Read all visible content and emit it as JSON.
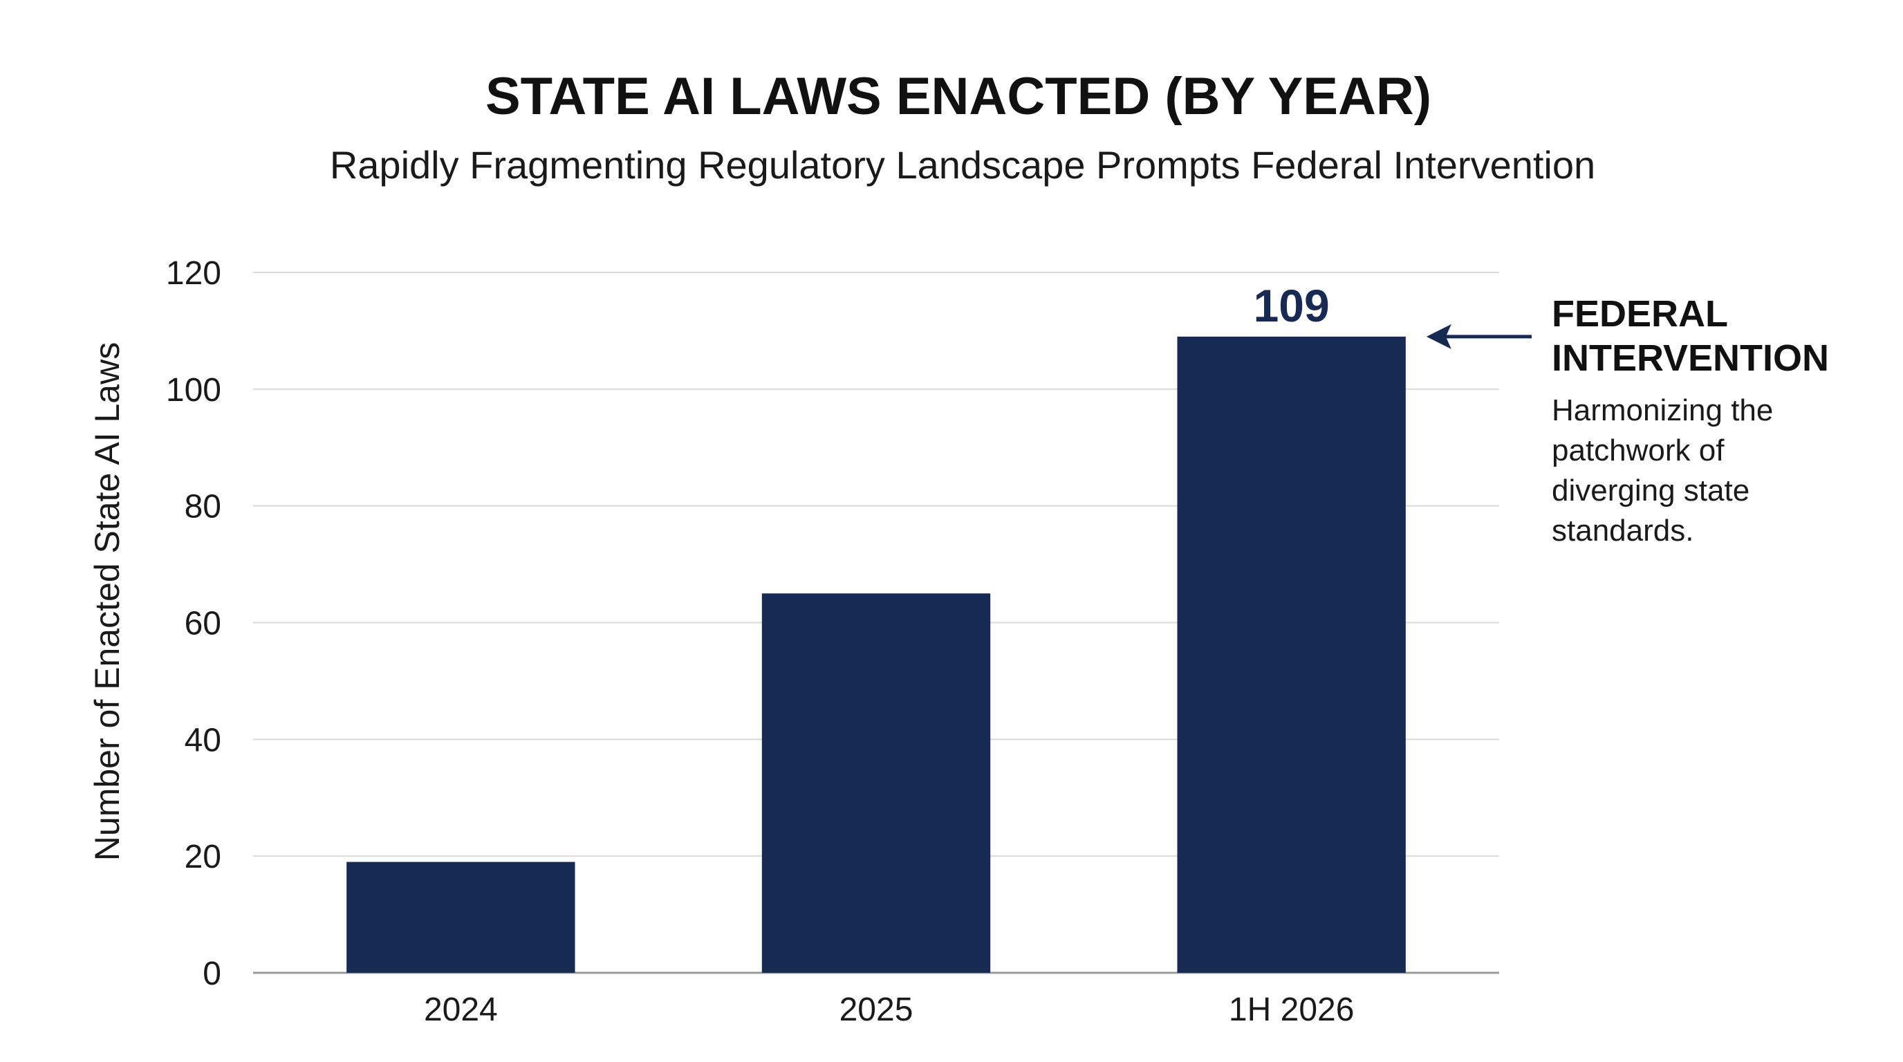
{
  "colors": {
    "bar": "#172a54",
    "label": "#172a54",
    "arrow": "#172a54"
  },
  "chart_data": {
    "type": "bar",
    "title": "STATE AI LAWS ENACTED (BY YEAR)",
    "subtitle": "Rapidly Fragmenting Regulatory Landscape Prompts Federal Intervention",
    "xlabel": "",
    "ylabel": "Number of Enacted State AI Laws",
    "categories": [
      "2024",
      "2025",
      "1H 2026"
    ],
    "values": [
      19,
      65,
      109
    ],
    "data_labels": [
      "",
      "",
      "109"
    ],
    "ylim": [
      0,
      120
    ],
    "yticks": [
      0,
      20,
      40,
      60,
      80,
      100,
      120
    ],
    "grid": true,
    "legend": "none"
  },
  "annotation": {
    "title_lines": [
      "FEDERAL",
      "INTERVENTION"
    ],
    "body_lines": [
      "Harmonizing the",
      "patchwork of",
      "diverging state",
      "standards."
    ],
    "target_category_index": 2,
    "icon": "arrow-left-icon"
  }
}
